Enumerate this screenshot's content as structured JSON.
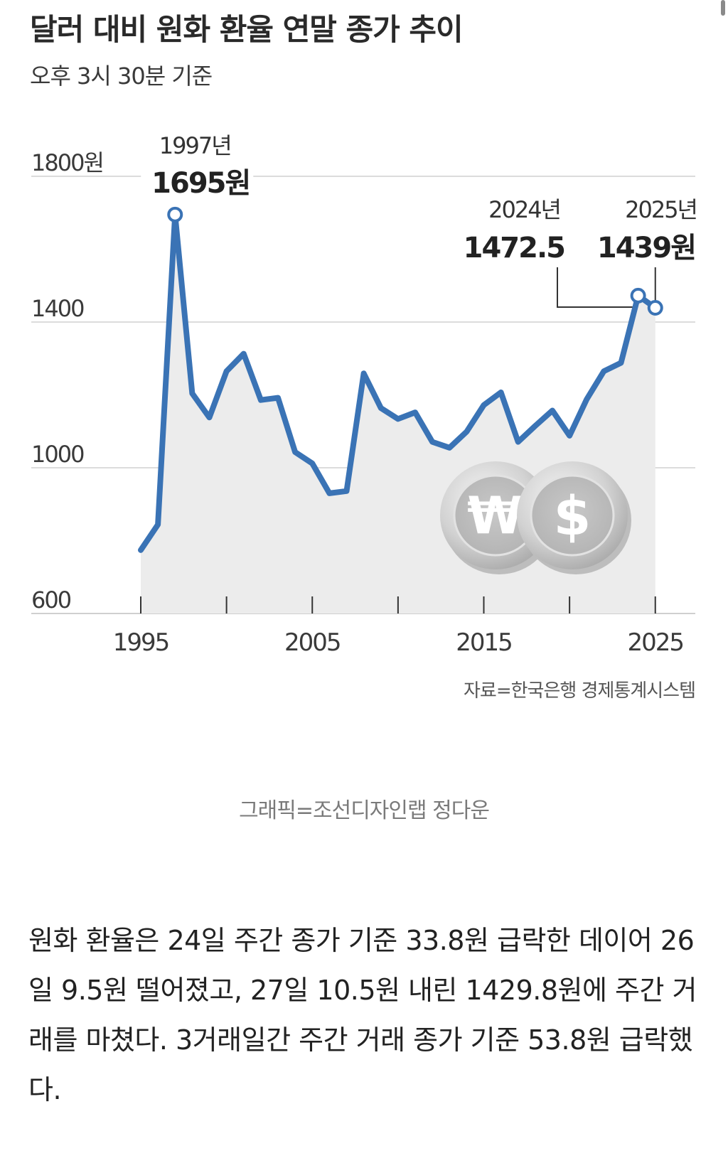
{
  "chart_data": {
    "type": "area",
    "title": "달러 대비 원화 환율 연말 종가 추이",
    "subtitle": "오후 3시 30분 기준",
    "source": "자료=한국은행 경제통계시스템",
    "y_ticks": [
      "1800원",
      "1400",
      "1000",
      "600"
    ],
    "y_tick_values": [
      1800,
      1400,
      1000,
      600
    ],
    "x_ticks": [
      "1995",
      "2005",
      "2015",
      "2025"
    ],
    "x_tick_values": [
      1995,
      2005,
      2015,
      2025
    ],
    "x_minor_ticks": [
      1995,
      2000,
      2005,
      2010,
      2015,
      2020,
      2025
    ],
    "xlim": [
      1995,
      2027
    ],
    "ylim": [
      600,
      1800
    ],
    "grid": true,
    "series": [
      {
        "x": [
          1995,
          1996,
          1997,
          1998,
          1999,
          2000,
          2001,
          2002,
          2003,
          2004,
          2005,
          2006,
          2007,
          2008,
          2009,
          2010,
          2011,
          2012,
          2013,
          2014,
          2015,
          2016,
          2017,
          2018,
          2019,
          2020,
          2021,
          2022,
          2023,
          2024,
          2025
        ],
        "values": [
          774,
          844,
          1695,
          1204,
          1138,
          1265,
          1313,
          1186,
          1192,
          1043,
          1012,
          930,
          936,
          1259,
          1164,
          1134,
          1152,
          1071,
          1055,
          1099,
          1172,
          1207,
          1071,
          1115,
          1157,
          1088,
          1188,
          1265,
          1288,
          1472.5,
          1439
        ],
        "color": "#3a73b5"
      }
    ],
    "annotations": [
      {
        "year_label": "1997년",
        "value_label": "1695원",
        "x": 1997,
        "y": 1695
      },
      {
        "year_label": "2024년",
        "value_label": "1472.5",
        "x": 2024,
        "y": 1472.5
      },
      {
        "year_label": "2025년",
        "value_label": "1439원",
        "x": 2025,
        "y": 1439
      }
    ],
    "colors": {
      "line": "#3a73b5",
      "area": "#ececec",
      "grid": "#dcdcdc",
      "axis": "#cfcfcf"
    }
  },
  "credit": "그래픽=조선디자인랩 정다운",
  "article": "원화 환율은 24일 주간 종가 기준 33.8원 급락한 데이어 26일 9.5원 떨어졌고, 27일 10.5원 내린 1429.8원에 주간 거래를 마쳤다. 3거래일간 주간 거래 종가 기준 53.8원 급락했다.",
  "coin_icons": [
    "won-coin-icon",
    "dollar-coin-icon"
  ],
  "coin_symbols": {
    "won": "₩",
    "dollar": "$"
  }
}
